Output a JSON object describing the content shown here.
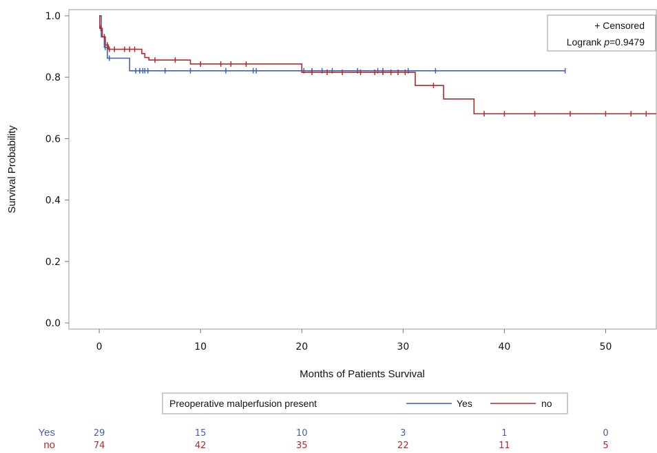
{
  "chart_data": {
    "type": "line",
    "subtype": "kaplan-meier",
    "title": "",
    "xlabel": "Months of Patients Survival",
    "ylabel": "Survival Probability",
    "xlim": [
      -3,
      55
    ],
    "ylim": [
      -0.02,
      1.02
    ],
    "xticks": [
      0,
      10,
      20,
      30,
      40,
      50
    ],
    "xtick_labels": [
      "0",
      "10",
      "20",
      "30",
      "40",
      "50"
    ],
    "yticks": [
      0.0,
      0.2,
      0.4,
      0.6,
      0.8,
      1.0
    ],
    "ytick_labels": [
      "0.0",
      "0.2",
      "0.4",
      "0.6",
      "0.8",
      "1.0"
    ],
    "grid": false,
    "legend": {
      "title": "Preoperative malperfusion present",
      "position": "bottom",
      "entries": [
        "Yes",
        "no"
      ]
    },
    "annotations": {
      "censored": "+ Censored",
      "logrank_label": "Logrank ",
      "logrank_p": "p",
      "logrank_value": "=0.9479",
      "position": "top-right"
    },
    "series": [
      {
        "name": "Yes",
        "color": "#3f5fb7",
        "steps": [
          [
            0,
            1.0
          ],
          [
            0.2,
            0.931
          ],
          [
            0.5,
            0.897
          ],
          [
            0.8,
            0.862
          ],
          [
            3.0,
            0.821
          ],
          [
            46,
            0.821
          ]
        ],
        "censored": [
          [
            0.6,
            0.897
          ],
          [
            1.0,
            0.862
          ],
          [
            3.6,
            0.821
          ],
          [
            4.0,
            0.821
          ],
          [
            4.3,
            0.821
          ],
          [
            4.5,
            0.821
          ],
          [
            4.8,
            0.821
          ],
          [
            6.5,
            0.821
          ],
          [
            9,
            0.821
          ],
          [
            12.5,
            0.821
          ],
          [
            15.2,
            0.821
          ],
          [
            15.5,
            0.821
          ],
          [
            20.2,
            0.821
          ],
          [
            21,
            0.821
          ],
          [
            22,
            0.821
          ],
          [
            23,
            0.821
          ],
          [
            25.5,
            0.821
          ],
          [
            27.5,
            0.821
          ],
          [
            28,
            0.821
          ],
          [
            30.5,
            0.821
          ],
          [
            33.2,
            0.821
          ],
          [
            46,
            0.821
          ]
        ]
      },
      {
        "name": "no",
        "color": "#b22a2a",
        "steps": [
          [
            0,
            1.0
          ],
          [
            0.05,
            0.959
          ],
          [
            0.3,
            0.932
          ],
          [
            0.6,
            0.905
          ],
          [
            0.9,
            0.891
          ],
          [
            4.2,
            0.877
          ],
          [
            4.5,
            0.864
          ],
          [
            4.9,
            0.856
          ],
          [
            9.0,
            0.843
          ],
          [
            20.0,
            0.816
          ],
          [
            31.2,
            0.773
          ],
          [
            34.0,
            0.729
          ],
          [
            37.0,
            0.681
          ],
          [
            55,
            0.681
          ]
        ],
        "censored": [
          [
            0.15,
            0.959
          ],
          [
            0.5,
            0.932
          ],
          [
            0.8,
            0.905
          ],
          [
            1.0,
            0.891
          ],
          [
            1.5,
            0.891
          ],
          [
            2.5,
            0.891
          ],
          [
            3.0,
            0.891
          ],
          [
            3.5,
            0.891
          ],
          [
            5.5,
            0.856
          ],
          [
            7.5,
            0.856
          ],
          [
            10.0,
            0.843
          ],
          [
            12.0,
            0.843
          ],
          [
            13.0,
            0.843
          ],
          [
            14.5,
            0.843
          ],
          [
            21.0,
            0.816
          ],
          [
            22.5,
            0.816
          ],
          [
            24.0,
            0.816
          ],
          [
            25.8,
            0.816
          ],
          [
            27.2,
            0.816
          ],
          [
            28.0,
            0.816
          ],
          [
            28.8,
            0.816
          ],
          [
            29.5,
            0.816
          ],
          [
            30.2,
            0.816
          ],
          [
            33.0,
            0.773
          ],
          [
            38.0,
            0.681
          ],
          [
            40.0,
            0.681
          ],
          [
            43.0,
            0.681
          ],
          [
            46.5,
            0.681
          ],
          [
            50.0,
            0.681
          ],
          [
            52.5,
            0.681
          ],
          [
            54.0,
            0.681
          ]
        ]
      }
    ],
    "risk_table": {
      "times": [
        0,
        10,
        20,
        30,
        40,
        50
      ],
      "rows": [
        {
          "label": "Yes",
          "color": "#3f5fb7",
          "counts": [
            "29",
            "15",
            "10",
            "3",
            "1",
            "0"
          ]
        },
        {
          "label": "no",
          "color": "#b22a2a",
          "counts": [
            "74",
            "42",
            "35",
            "22",
            "11",
            "5"
          ]
        }
      ]
    }
  }
}
